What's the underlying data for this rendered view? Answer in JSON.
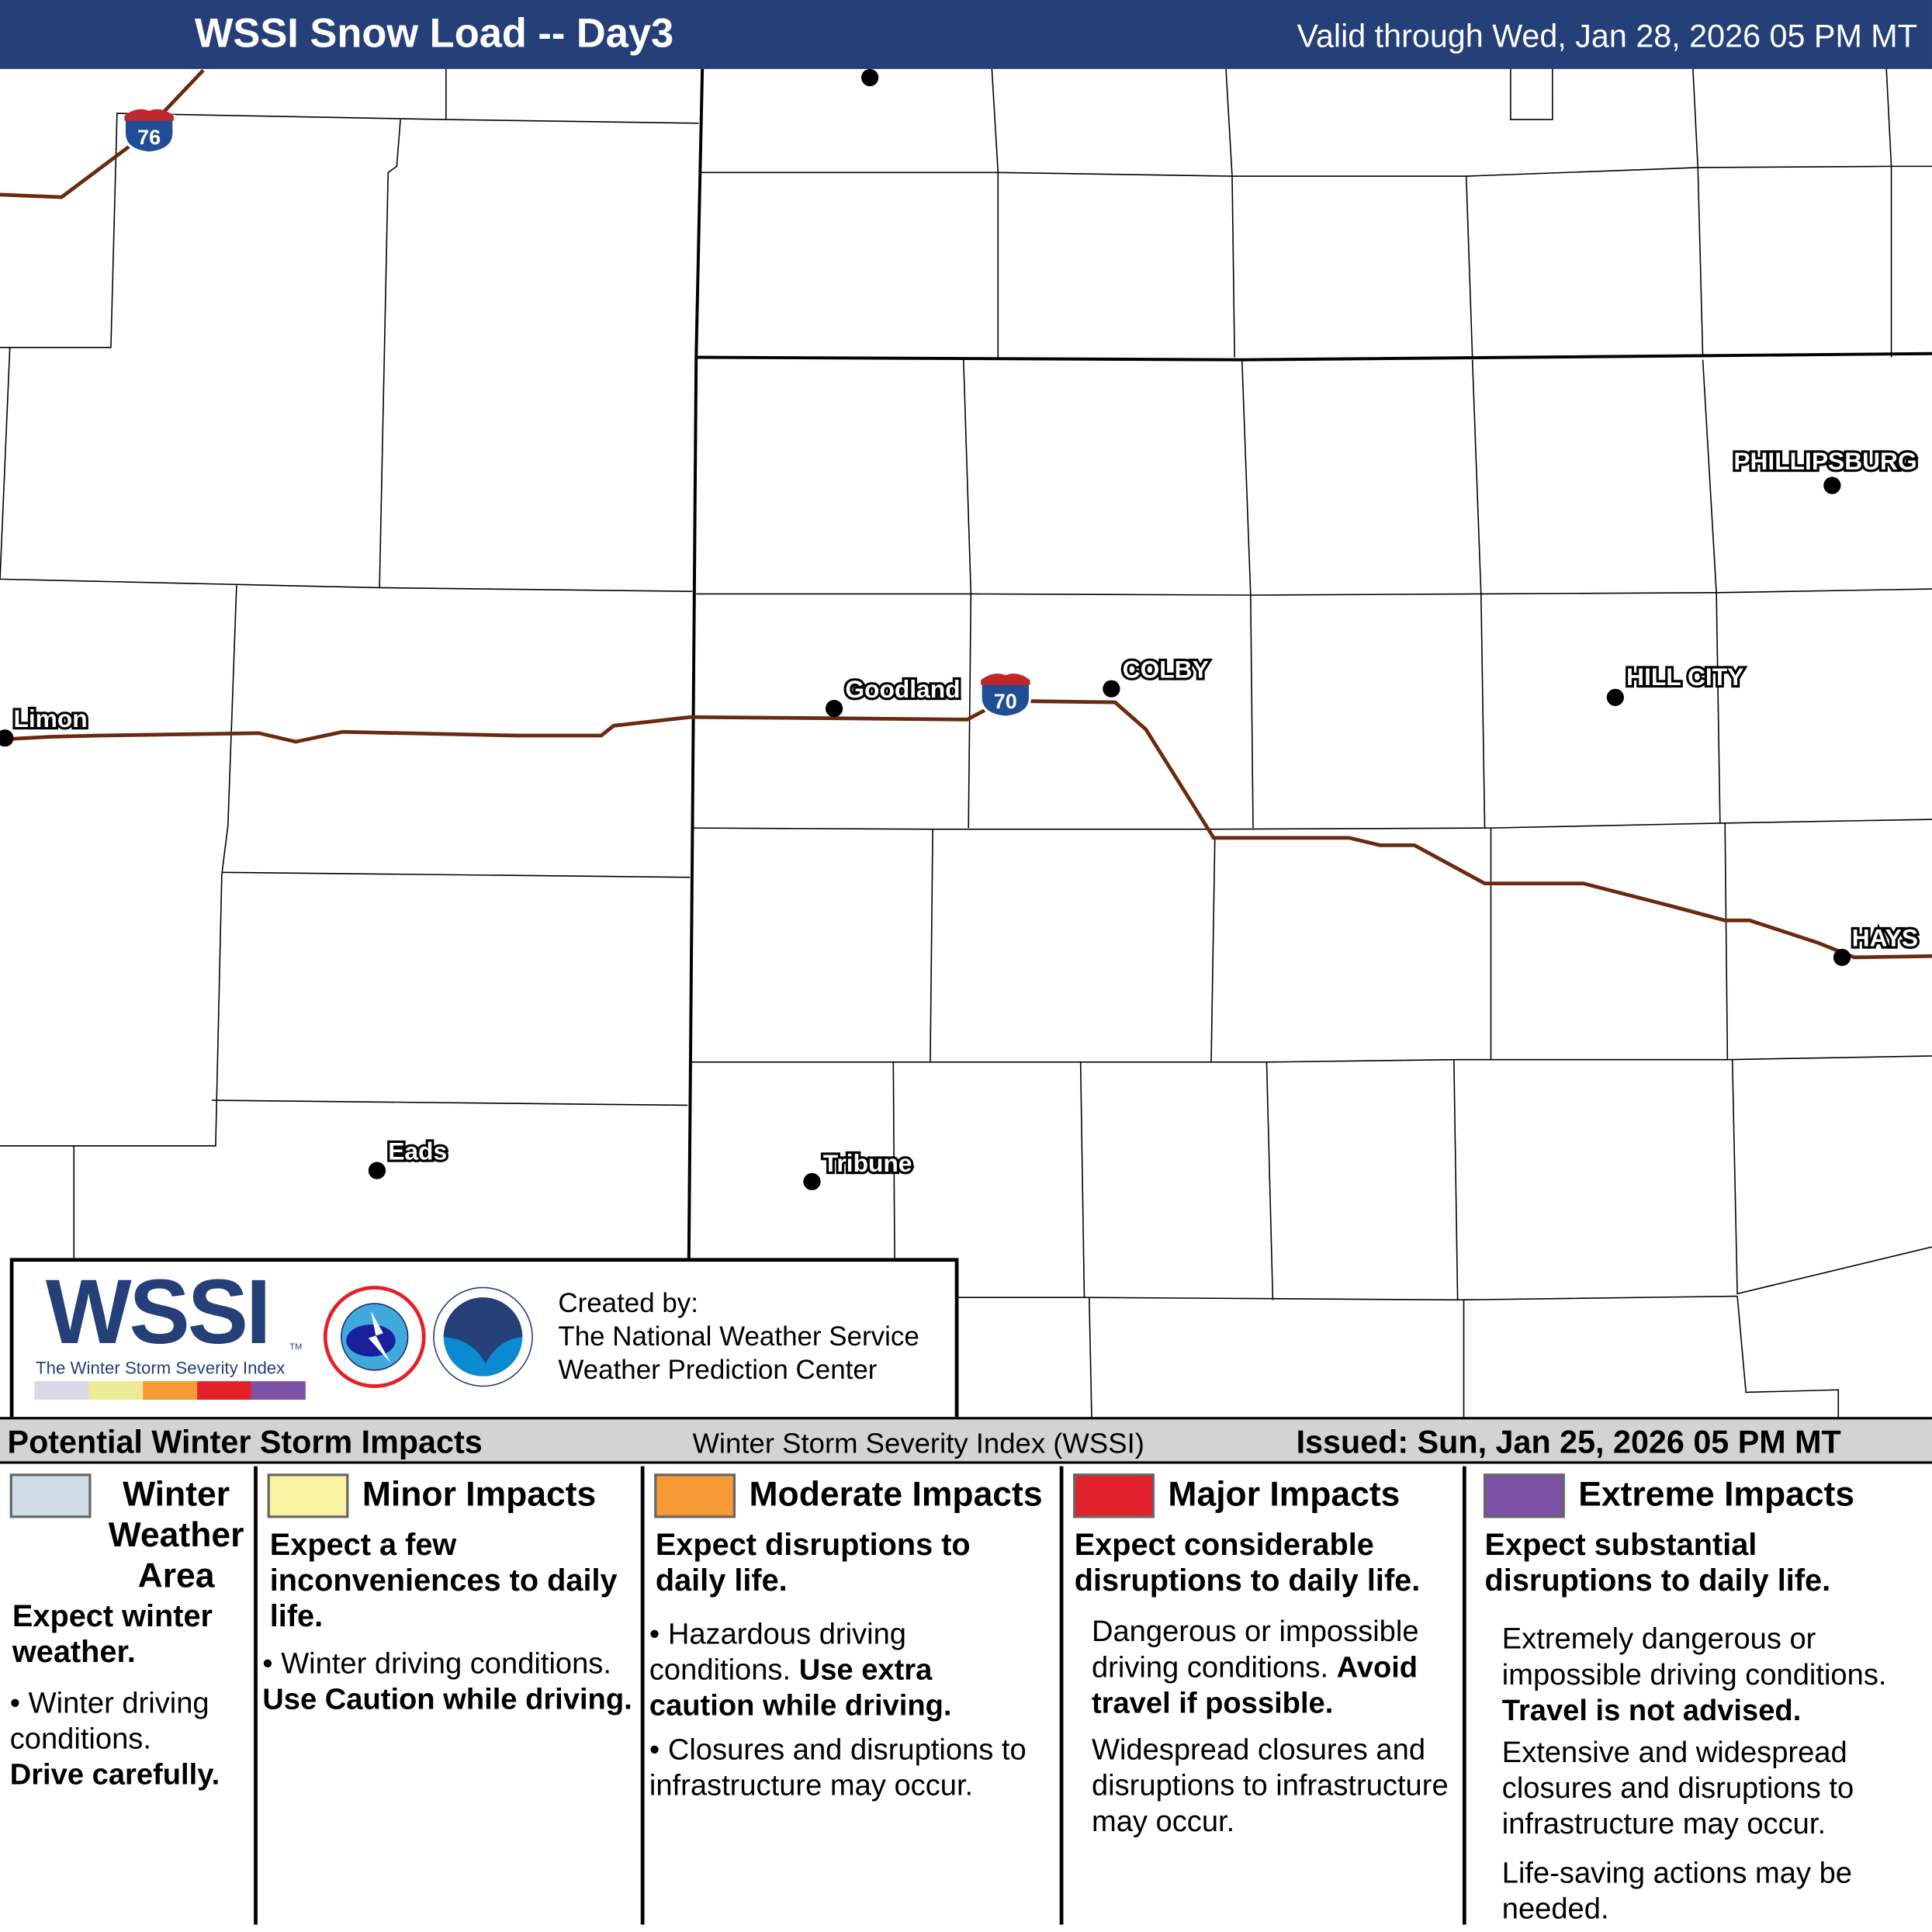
{
  "header": {
    "title": "WSSI Snow Load -- Day3",
    "valid": "Valid through Wed, Jan 28, 2026 05 PM MT"
  },
  "map": {
    "cities": [
      {
        "name": "Limon"
      },
      {
        "name": "Goodland"
      },
      {
        "name": "COLBY"
      },
      {
        "name": "PHILLIPSBURG"
      },
      {
        "name": "HILL CITY"
      },
      {
        "name": "HAYS"
      },
      {
        "name": "Eads"
      },
      {
        "name": "Tribune"
      }
    ],
    "shields": [
      {
        "label": "76"
      },
      {
        "label": "70"
      }
    ],
    "road_color": "#6b2a0f"
  },
  "logo": {
    "wssi": "WSSI",
    "tm": "TM",
    "subtitle": "The Winter Storm Severity Index",
    "created_by": "Created by:",
    "org1": "The National Weather Service",
    "org2": "Weather Prediction Center",
    "scale_colors": [
      "#d8d8e8",
      "#ecec96",
      "#f59a35",
      "#e2212a",
      "#7b52a6"
    ]
  },
  "legend": {
    "heading": "Potential Winter Storm Impacts",
    "center": "Winter Storm Severity Index (WSSI)",
    "issued": "Issued: Sun, Jan 25, 2026 05 PM MT",
    "columns": [
      {
        "title": "Winter Weather Area",
        "color": "#d0dde6",
        "summary": "Expect winter weather.",
        "bullet": "Winter driving conditions.",
        "bold": "Drive carefully."
      },
      {
        "title": "Minor Impacts",
        "color": "#f7f3a0",
        "summary": "Expect a few inconveniences to daily life.",
        "bullet": "Winter driving conditions.",
        "bold": "Use Caution while driving."
      },
      {
        "title": "Moderate Impacts",
        "color": "#f59a35",
        "summary": "Expect disruptions to daily life.",
        "bullet": "Hazardous driving conditions.",
        "bold": "Use extra caution while driving.",
        "bullet2": "Closures and disruptions to infrastructure may occur."
      },
      {
        "title": "Major Impacts",
        "color": "#e2212a",
        "summary": "Expect considerable disruptions to daily life.",
        "text": "Dangerous or impossible driving conditions.",
        "bold": "Avoid travel if possible.",
        "text2": "Widespread closures and disruptions to infrastructure may occur."
      },
      {
        "title": "Extreme Impacts",
        "color": "#7b52a6",
        "summary": "Expect substantial disruptions to daily life.",
        "text": "Extremely dangerous or impossible driving conditions.",
        "bold": "Travel is not advised.",
        "text2": "Extensive and widespread closures and disruptions to infrastructure may occur.",
        "text3": "Life-saving actions may be needed."
      }
    ]
  }
}
